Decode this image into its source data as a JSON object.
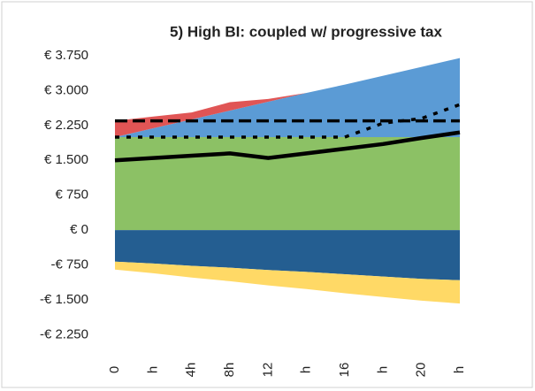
{
  "chart_data": {
    "type": "stacked-area-line",
    "title": "5) High BI: coupled w/ progressive tax",
    "categories": [
      "0",
      "h",
      "4h",
      "8h",
      "12",
      "h",
      "16",
      "h",
      "20",
      "h"
    ],
    "ylim": [
      -2625,
      3750
    ],
    "yticks": [
      {
        "value": 3750,
        "label": "€ 3.750"
      },
      {
        "value": 3000,
        "label": "€ 3.000"
      },
      {
        "value": 2250,
        "label": "€ 2.250"
      },
      {
        "value": 1500,
        "label": "€ 1.500"
      },
      {
        "value": 750,
        "label": "€ 750"
      },
      {
        "value": 0,
        "label": "€ 0"
      },
      {
        "value": -750,
        "label": "-€ 750"
      },
      {
        "value": -1500,
        "label": "-€ 1.500"
      },
      {
        "value": -2250,
        "label": "-€ 2.250"
      }
    ],
    "grid": false,
    "series": [
      {
        "kind": "area",
        "color": "#8cc165",
        "values": [
          2000,
          2000,
          2000,
          2000,
          2000,
          2000,
          2000,
          2000,
          2000,
          2000
        ]
      },
      {
        "kind": "area",
        "color": "#5b9bd5",
        "values": [
          0,
          190,
          380,
          570,
          760,
          950,
          1130,
          1320,
          1510,
          1700
        ]
      },
      {
        "kind": "area",
        "color": "#e05555",
        "values": [
          350,
          250,
          150,
          180,
          60,
          0,
          0,
          0,
          0,
          0
        ]
      },
      {
        "kind": "area",
        "color": "#245e91",
        "values": [
          -680,
          -720,
          -770,
          -810,
          -860,
          -900,
          -950,
          -1000,
          -1050,
          -1080
        ]
      },
      {
        "kind": "area",
        "color": "#ffd966",
        "values": [
          -170,
          -210,
          -250,
          -290,
          -330,
          -370,
          -410,
          -440,
          -470,
          -500
        ]
      },
      {
        "kind": "line",
        "dash": "solid",
        "color": "#000000",
        "values": [
          1500,
          1550,
          1600,
          1650,
          1550,
          1650,
          1750,
          1850,
          1980,
          2100
        ]
      },
      {
        "kind": "line",
        "dash": "dashed",
        "color": "#000000",
        "values": [
          2350,
          2350,
          2350,
          2350,
          2350,
          2350,
          2350,
          2350,
          2350,
          2350
        ]
      },
      {
        "kind": "line",
        "dash": "dotted",
        "color": "#000000",
        "values": [
          2000,
          2000,
          2000,
          2000,
          2000,
          2000,
          2000,
          2300,
          2400,
          2700
        ]
      }
    ]
  }
}
